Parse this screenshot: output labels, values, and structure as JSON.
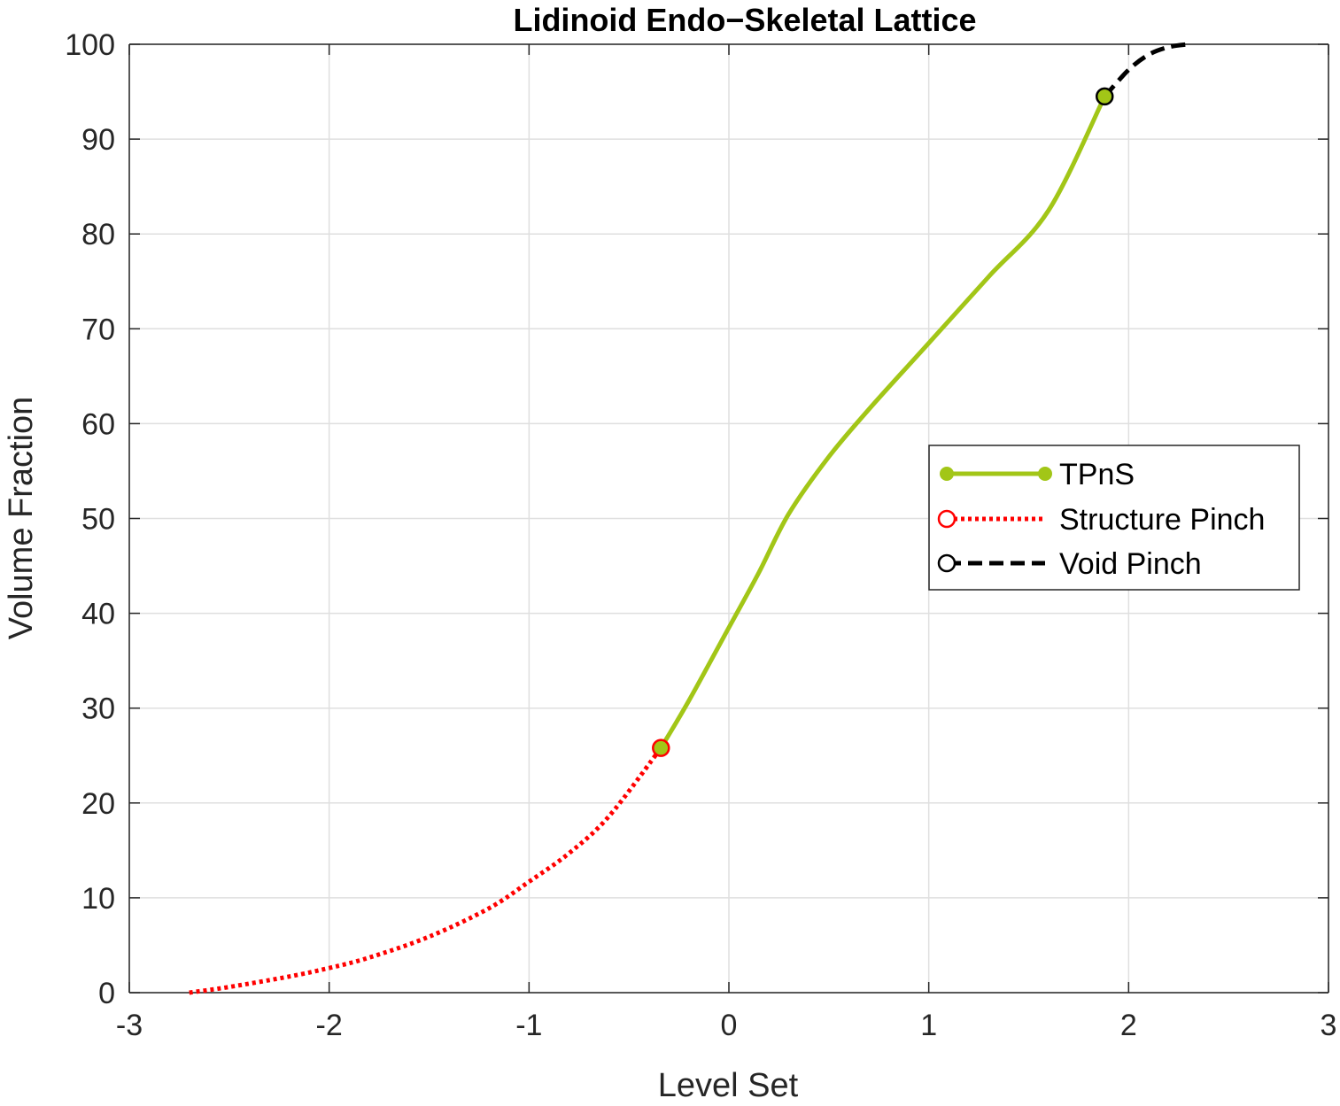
{
  "chart_data": {
    "type": "line",
    "title": "Lidinoid Endo−Skeletal Lattice",
    "xlabel": "Level Set",
    "ylabel": "Volume Fraction",
    "xlim": [
      -3,
      3
    ],
    "ylim": [
      0,
      100
    ],
    "xticks": [
      -3,
      -2,
      -1,
      0,
      1,
      2,
      3
    ],
    "yticks": [
      0,
      10,
      20,
      30,
      40,
      50,
      60,
      70,
      80,
      90,
      100
    ],
    "xtick_labels": [
      "-3",
      "-2",
      "-1",
      "0",
      "1",
      "2",
      "3"
    ],
    "ytick_labels": [
      "0",
      "10",
      "20",
      "30",
      "40",
      "50",
      "60",
      "70",
      "80",
      "90",
      "100"
    ],
    "grid": true,
    "legend_position": "right",
    "series": [
      {
        "name": "TPnS",
        "color": "#a2c617",
        "line_style": "solid",
        "marker": "filled-circle",
        "x": [
          -0.34,
          -0.2,
          0.0,
          0.15,
          0.3,
          0.5,
          0.7,
          1.0,
          1.3,
          1.6,
          1.88
        ],
        "y": [
          25.8,
          30.8,
          38.5,
          44.3,
          50.5,
          56.5,
          61.5,
          68.5,
          75.5,
          82.5,
          94.5
        ]
      },
      {
        "name": "Structure Pinch",
        "color": "#ff0000",
        "line_style": "dotted",
        "marker": "open-circle",
        "x": [
          -2.7,
          -2.5,
          -2.2,
          -2.0,
          -1.8,
          -1.5,
          -1.2,
          -1.0,
          -0.8,
          -0.6,
          -0.34
        ],
        "y": [
          0,
          0.6,
          1.7,
          2.6,
          3.7,
          5.9,
          8.9,
          11.7,
          14.7,
          18.6,
          25.8
        ]
      },
      {
        "name": "Void Pinch",
        "color": "#000000",
        "line_style": "dashed",
        "marker": "open-circle",
        "x": [
          1.88,
          2.0,
          2.1,
          2.2,
          2.3
        ],
        "y": [
          94.5,
          97.3,
          98.9,
          99.7,
          100
        ]
      }
    ]
  }
}
